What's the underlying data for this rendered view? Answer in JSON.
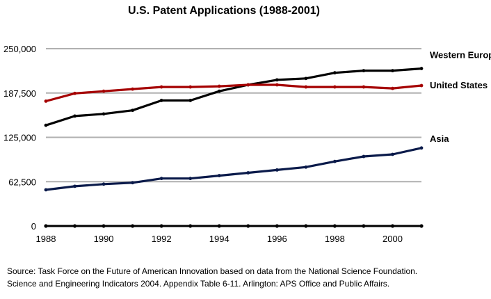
{
  "chart_data": {
    "type": "line",
    "title": "U.S. Patent Applications (1988-2001)",
    "xlabel": "",
    "ylabel": "",
    "x": [
      1988,
      1989,
      1990,
      1991,
      1992,
      1993,
      1994,
      1995,
      1996,
      1997,
      1998,
      1999,
      2000,
      2001
    ],
    "x_ticks": [
      "1988",
      "1990",
      "1992",
      "1994",
      "1996",
      "1998",
      "2000"
    ],
    "y_ticks": [
      "0",
      "62,500",
      "125,000",
      "187,500",
      "250,000"
    ],
    "ylim": [
      0,
      250000
    ],
    "grid": true,
    "series": [
      {
        "name": "Western Europe",
        "color": "#000000",
        "values": [
          142000,
          155000,
          158000,
          163000,
          177000,
          177000,
          190000,
          199000,
          206000,
          208000,
          216000,
          219000,
          219000,
          222000
        ]
      },
      {
        "name": "United States",
        "color": "#a50000",
        "values": [
          176000,
          187000,
          190000,
          193000,
          196000,
          196000,
          197000,
          199000,
          199000,
          196000,
          196000,
          196000,
          194000,
          198000
        ]
      },
      {
        "name": "Asia",
        "color": "#0a1a4a",
        "values": [
          51000,
          56000,
          59000,
          61000,
          67000,
          67000,
          71000,
          75000,
          79000,
          83000,
          91000,
          98000,
          101000,
          110000
        ]
      }
    ]
  },
  "source": {
    "line1": "Source: Task Force on the Future of American Innovation based on data from the National Science Foundation.",
    "line2": "Science and Engineering Indicators 2004.  Appendix Table 6-11.  Arlington: APS Office and Public Affairs."
  }
}
